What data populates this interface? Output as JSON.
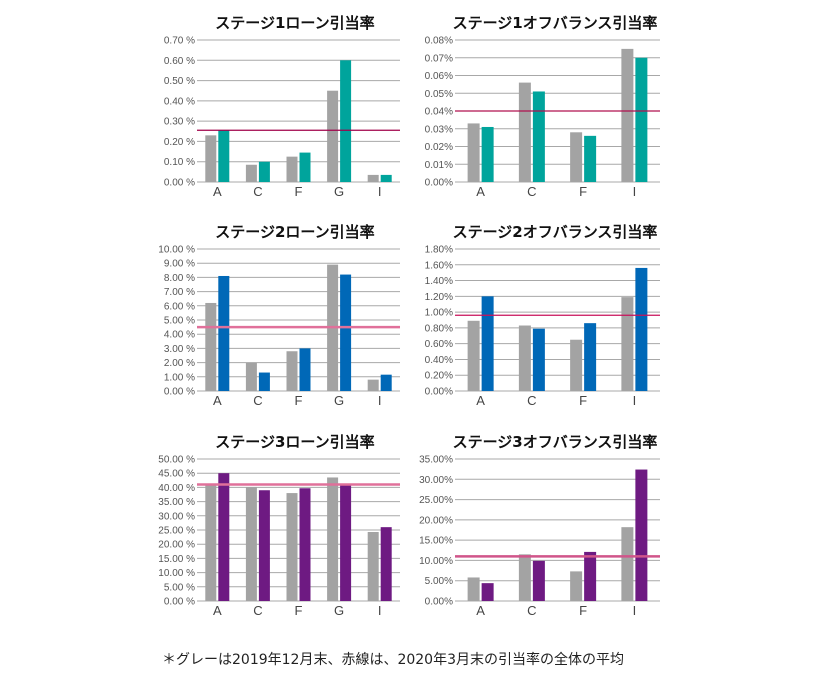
{
  "footnote": "＊グレーは2019年12月末、赤線は、2020年3月末の引当率の全体の平均",
  "colors": {
    "gray": "#a3a3a3",
    "teal": "#00a49c",
    "blue": "#0068b7",
    "purple": "#6e1a82",
    "grid": "#a8a8a8"
  },
  "chart_data": [
    {
      "type": "bar",
      "title": "ステージ1ローン引当率",
      "categories": [
        "A",
        "C",
        "F",
        "G",
        "I"
      ],
      "ylim": [
        0,
        0.7
      ],
      "ticks": [
        0,
        0.1,
        0.2,
        0.3,
        0.4,
        0.5,
        0.6,
        0.7
      ],
      "tick_labels": [
        "0.00 %",
        "0.10 %",
        "0.20 %",
        "0.30 %",
        "0.40 %",
        "0.50 %",
        "0.60 %",
        "0.70 %"
      ],
      "series": [
        {
          "name": "2019年12月末",
          "color": "#a3a3a3",
          "values": [
            0.23,
            0.085,
            0.125,
            0.45,
            0.035
          ]
        },
        {
          "name": "2020年3月末",
          "color": "#00a49c",
          "values": [
            0.255,
            0.1,
            0.145,
            0.6,
            0.035
          ]
        }
      ],
      "average": {
        "value": 0.255,
        "color": "#a0004a"
      }
    },
    {
      "type": "bar",
      "title": "ステージ1オフバランス引当率",
      "categories": [
        "A",
        "C",
        "F",
        "I"
      ],
      "ylim": [
        0,
        0.08
      ],
      "ticks": [
        0,
        0.01,
        0.02,
        0.03,
        0.04,
        0.05,
        0.06,
        0.07,
        0.08
      ],
      "tick_labels": [
        "0.00%",
        "0.01%",
        "0.02%",
        "0.03%",
        "0.04%",
        "0.05%",
        "0.06%",
        "0.07%",
        "0.08%"
      ],
      "series": [
        {
          "name": "2019年12月末",
          "color": "#a3a3a3",
          "values": [
            0.033,
            0.056,
            0.028,
            0.075
          ]
        },
        {
          "name": "2020年3月末",
          "color": "#00a49c",
          "values": [
            0.031,
            0.051,
            0.026,
            0.07
          ]
        }
      ],
      "average": {
        "value": 0.04,
        "color": "#b0104f"
      }
    },
    {
      "type": "bar",
      "title": "ステージ2ローン引当率",
      "categories": [
        "A",
        "C",
        "F",
        "G",
        "I"
      ],
      "ylim": [
        0,
        10
      ],
      "ticks": [
        0,
        1,
        2,
        3,
        4,
        5,
        6,
        7,
        8,
        9,
        10
      ],
      "tick_labels": [
        "0.00 %",
        "1.00 %",
        "2.00 %",
        "3.00 %",
        "4.00 %",
        "5.00 %",
        "6.00 %",
        "7.00 %",
        "8.00 %",
        "9.00 %",
        "10.00 %"
      ],
      "series": [
        {
          "name": "2019年12月末",
          "color": "#a3a3a3",
          "values": [
            6.2,
            2.0,
            2.8,
            8.9,
            0.8
          ]
        },
        {
          "name": "2020年3月末",
          "color": "#0068b7",
          "values": [
            8.1,
            1.3,
            3.0,
            8.2,
            1.15
          ]
        }
      ],
      "average": {
        "value": 4.5,
        "color": "#e0709a"
      }
    },
    {
      "type": "bar",
      "title": "ステージ2オフバランス引当率",
      "categories": [
        "A",
        "C",
        "F",
        "I"
      ],
      "ylim": [
        0,
        1.8
      ],
      "ticks": [
        0,
        0.2,
        0.4,
        0.6,
        0.8,
        1.0,
        1.2,
        1.4,
        1.6,
        1.8
      ],
      "tick_labels": [
        "0.00%",
        "0.20%",
        "0.40%",
        "0.60%",
        "0.80%",
        "1.00%",
        "1.20%",
        "1.40%",
        "1.60%",
        "1.80%"
      ],
      "series": [
        {
          "name": "2019年12月末",
          "color": "#a3a3a3",
          "values": [
            0.89,
            0.83,
            0.65,
            1.19
          ]
        },
        {
          "name": "2020年3月末",
          "color": "#0068b7",
          "values": [
            1.2,
            0.79,
            0.86,
            1.56
          ]
        }
      ],
      "average": {
        "value": 0.96,
        "color": "#c8105a"
      }
    },
    {
      "type": "bar",
      "title": "ステージ3ローン引当率",
      "categories": [
        "A",
        "C",
        "F",
        "G",
        "I"
      ],
      "ylim": [
        0,
        50
      ],
      "ticks": [
        0,
        5,
        10,
        15,
        20,
        25,
        30,
        35,
        40,
        45,
        50
      ],
      "tick_labels": [
        "0.00 %",
        "5.00 %",
        "10.00 %",
        "15.00 %",
        "20.00 %",
        "25.00 %",
        "30.00 %",
        "35.00 %",
        "40.00 %",
        "45.00 %",
        "50.00 %"
      ],
      "series": [
        {
          "name": "2019年12月末",
          "color": "#a3a3a3",
          "values": [
            41,
            40,
            38,
            43.5,
            24.3
          ]
        },
        {
          "name": "2020年3月末",
          "color": "#6e1a82",
          "values": [
            45,
            39,
            39.7,
            41,
            26
          ]
        }
      ],
      "average": {
        "value": 41,
        "color": "#e0709a"
      }
    },
    {
      "type": "bar",
      "title": "ステージ3オフバランス引当率",
      "categories": [
        "A",
        "C",
        "F",
        "I"
      ],
      "ylim": [
        0,
        35
      ],
      "ticks": [
        0,
        5,
        10,
        15,
        20,
        25,
        30,
        35
      ],
      "tick_labels": [
        "0.00%",
        "5.00%",
        "10.00%",
        "15.00%",
        "20.00%",
        "25.00%",
        "30.00%",
        "35.00%"
      ],
      "series": [
        {
          "name": "2019年12月末",
          "color": "#a3a3a3",
          "values": [
            5.8,
            11.5,
            7.3,
            18.2
          ]
        },
        {
          "name": "2020年3月末",
          "color": "#6e1a82",
          "values": [
            4.4,
            9.9,
            12.1,
            32.4
          ]
        }
      ],
      "average": {
        "value": 11,
        "color": "#d0558a"
      }
    }
  ]
}
